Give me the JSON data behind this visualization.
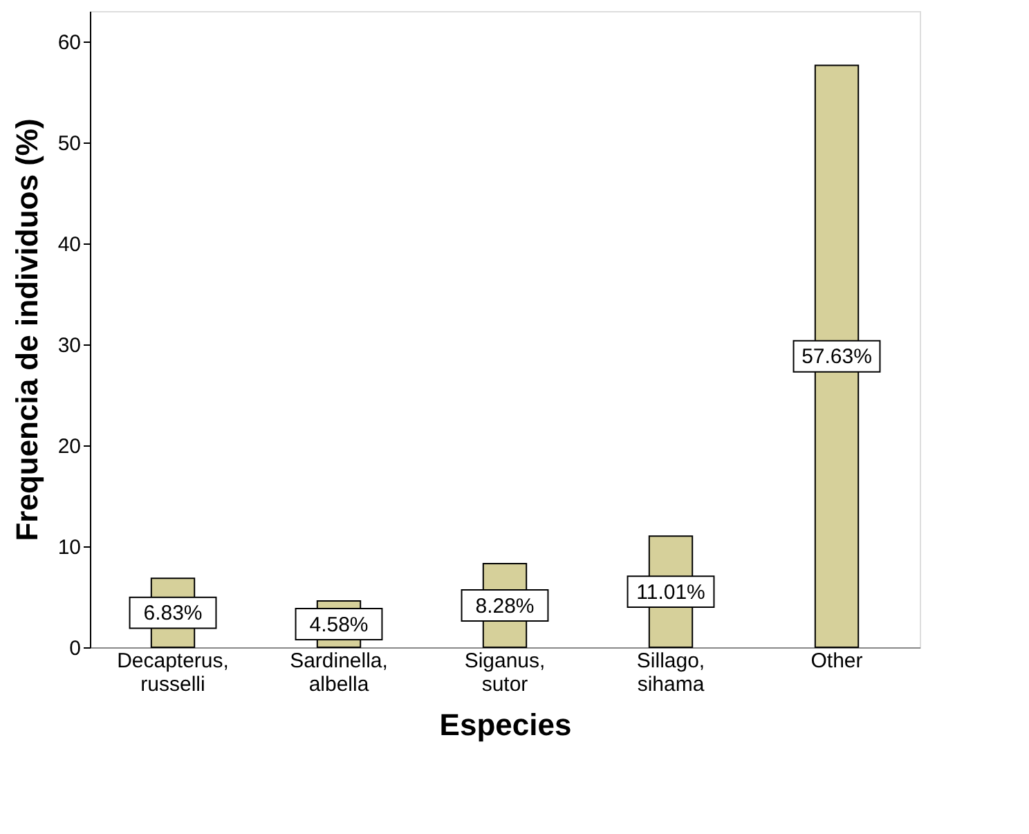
{
  "chart_data": {
    "type": "bar",
    "xlabel": "Especies",
    "ylabel": "Frequencia de individuos (%)",
    "categories": [
      "Decapterus, russelli",
      "Sardinella, albella",
      "Siganus, sutor",
      "Sillago, sihama",
      "Other"
    ],
    "values": [
      6.83,
      4.58,
      8.28,
      11.01,
      57.63
    ],
    "color": "#d6d09a",
    "value_labels": [
      "6.83%",
      "4.58%",
      "8.28%",
      "11.01%",
      "57.63%"
    ],
    "ylim": [
      0,
      63
    ],
    "yticks": [
      0,
      10,
      20,
      30,
      40,
      50,
      60
    ],
    "grid": false,
    "legend": false
  }
}
